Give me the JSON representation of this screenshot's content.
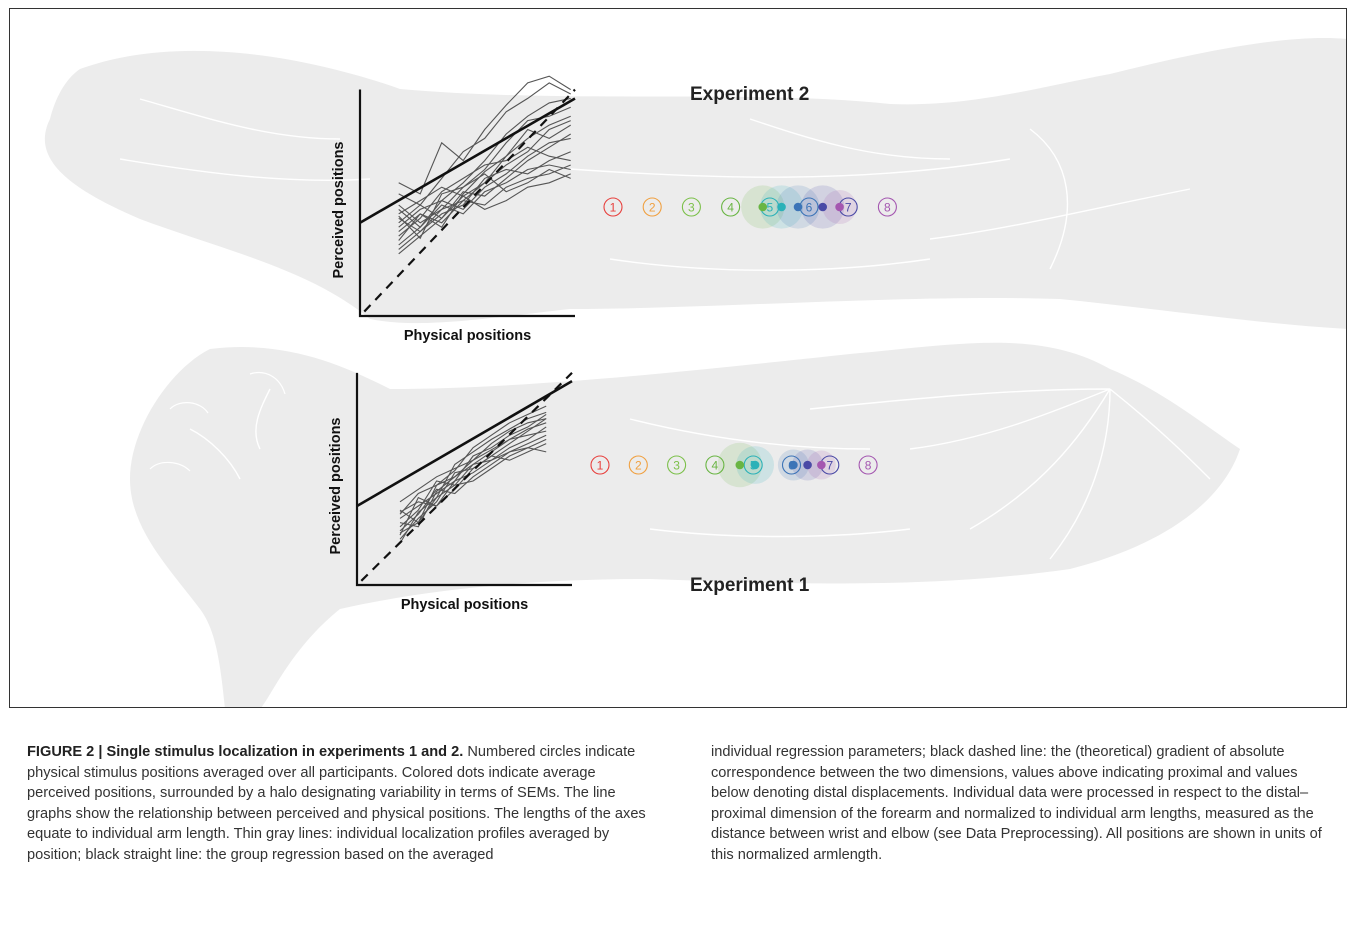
{
  "figure": {
    "experiments": [
      {
        "label": "Experiment 2",
        "chart_data": {
          "type": "line",
          "xlabel": "Physical positions",
          "ylabel": "Perceived positions",
          "stimulus_numbers": [
            "1",
            "2",
            "3",
            "4",
            "5",
            "6",
            "7",
            "8"
          ],
          "group_regression": {
            "intercept": 0.42,
            "slope": 0.56
          },
          "identity_line": {
            "intercept": 0.0,
            "slope": 1.0
          },
          "individual_profiles": [
            [
              0.6,
              0.55,
              0.78,
              0.7,
              0.84,
              0.95,
              1.05,
              1.08,
              1.02
            ],
            [
              0.55,
              0.5,
              0.62,
              0.74,
              0.8,
              0.92,
              0.98,
              1.05,
              1.0
            ],
            [
              0.4,
              0.48,
              0.52,
              0.6,
              0.7,
              0.82,
              0.9,
              0.96,
              0.98
            ],
            [
              0.45,
              0.35,
              0.55,
              0.58,
              0.66,
              0.78,
              0.88,
              0.9,
              0.94
            ],
            [
              0.38,
              0.46,
              0.4,
              0.55,
              0.65,
              0.72,
              0.8,
              0.86,
              0.9
            ],
            [
              0.5,
              0.42,
              0.48,
              0.52,
              0.6,
              0.68,
              0.74,
              0.84,
              0.88
            ],
            [
              0.32,
              0.4,
              0.52,
              0.48,
              0.58,
              0.64,
              0.72,
              0.78,
              0.8
            ],
            [
              0.42,
              0.5,
              0.44,
              0.56,
              0.54,
              0.62,
              0.7,
              0.76,
              0.82
            ],
            [
              0.36,
              0.44,
              0.56,
              0.62,
              0.68,
              0.7,
              0.76,
              0.72,
              0.7
            ],
            [
              0.3,
              0.38,
              0.46,
              0.5,
              0.62,
              0.66,
              0.64,
              0.7,
              0.74
            ],
            [
              0.48,
              0.4,
              0.5,
              0.46,
              0.56,
              0.6,
              0.66,
              0.68,
              0.66
            ],
            [
              0.34,
              0.46,
              0.42,
              0.52,
              0.5,
              0.58,
              0.62,
              0.64,
              0.68
            ],
            [
              0.44,
              0.38,
              0.48,
              0.58,
              0.64,
              0.56,
              0.6,
              0.66,
              0.62
            ],
            [
              0.28,
              0.36,
              0.44,
              0.54,
              0.48,
              0.52,
              0.58,
              0.6,
              0.64
            ],
            [
              0.46,
              0.52,
              0.58,
              0.54,
              0.6,
              0.72,
              0.84,
              0.8,
              0.86
            ]
          ],
          "perceived_means": [
            {
              "number": "4",
              "x": 0.82,
              "sem": 0.95
            },
            {
              "number": "5",
              "x": 1.3,
              "sem": 0.95
            },
            {
              "number": "6",
              "x": 1.72,
              "sem": 0.95
            },
            {
              "number": "7",
              "x": 2.35,
              "sem": 0.95
            },
            {
              "number": "8",
              "x": 2.78,
              "sem": 0.75
            }
          ]
        }
      },
      {
        "label": "Experiment 1",
        "chart_data": {
          "type": "line",
          "xlabel": "Physical positions",
          "ylabel": "Perceived positions",
          "stimulus_numbers": [
            "1",
            "2",
            "3",
            "4",
            "5",
            "6",
            "7",
            "8"
          ],
          "group_regression": {
            "intercept": 0.38,
            "slope": 0.6
          },
          "identity_line": {
            "intercept": 0.0,
            "slope": 1.0
          },
          "individual_profiles": [
            [
              0.25,
              0.3,
              0.48,
              0.55,
              0.66,
              0.72,
              0.78,
              0.82,
              0.86
            ],
            [
              0.2,
              0.35,
              0.42,
              0.58,
              0.64,
              0.7,
              0.75,
              0.8,
              0.83
            ],
            [
              0.3,
              0.28,
              0.45,
              0.52,
              0.6,
              0.68,
              0.74,
              0.78,
              0.8
            ],
            [
              0.35,
              0.4,
              0.38,
              0.5,
              0.62,
              0.66,
              0.72,
              0.76,
              0.82
            ],
            [
              0.28,
              0.36,
              0.5,
              0.48,
              0.58,
              0.64,
              0.7,
              0.75,
              0.78
            ],
            [
              0.22,
              0.32,
              0.4,
              0.54,
              0.56,
              0.62,
              0.68,
              0.74,
              0.8
            ],
            [
              0.4,
              0.46,
              0.52,
              0.56,
              0.6,
              0.65,
              0.7,
              0.72,
              0.74
            ],
            [
              0.32,
              0.38,
              0.44,
              0.5,
              0.54,
              0.6,
              0.66,
              0.7,
              0.76
            ],
            [
              0.26,
              0.34,
              0.46,
              0.44,
              0.52,
              0.58,
              0.64,
              0.68,
              0.72
            ],
            [
              0.36,
              0.3,
              0.42,
              0.48,
              0.5,
              0.56,
              0.62,
              0.66,
              0.7
            ],
            [
              0.24,
              0.42,
              0.38,
              0.46,
              0.56,
              0.62,
              0.6,
              0.64,
              0.68
            ],
            [
              0.34,
              0.44,
              0.48,
              0.52,
              0.58,
              0.6,
              0.64,
              0.66,
              0.64
            ]
          ],
          "perceived_means": [
            {
              "number": "4",
              "x": 0.65,
              "sem": 1.0
            },
            {
              "number": "5",
              "x": 1.05,
              "sem": 0.85
            },
            {
              "number": "6",
              "x": 2.05,
              "sem": 0.7
            },
            {
              "number": "7",
              "x": 2.42,
              "sem": 0.7
            },
            {
              "number": "8",
              "x": 2.78,
              "sem": 0.65
            }
          ]
        }
      }
    ],
    "colors": {
      "m1": "#e8403d",
      "m2": "#f0a040",
      "m3": "#7cc04a",
      "m4": "#69b543",
      "m5": "#2bb1b8",
      "m6": "#3c74b7",
      "m7": "#4a4aa6",
      "m8": "#a457b0",
      "arm": "#ececec",
      "arm_line": "#ffffff"
    }
  },
  "caption": {
    "lead": "FIGURE 2 | Single stimulus localization in experiments 1 and 2.",
    "left": " Numbered circles indicate physical stimulus positions averaged over all participants. Colored dots indicate average perceived positions, surrounded by a halo designating variability in terms of SEMs. The line graphs show the relationship between perceived and physical positions. The lengths of the axes equate to individual arm length. Thin gray lines: individual localization profiles averaged by position; black straight line: the group regression based on the averaged",
    "right": "individual regression parameters; black dashed line: the (theoretical) gradient of absolute correspondence between the two dimensions, values above indicating proximal and values below denoting distal displacements. Individual data were processed in respect to the distal–proximal dimension of the forearm and normalized to individual arm lengths, measured as the distance between wrist and elbow (see Data Preprocessing). All positions are shown in units of this normalized armlength."
  }
}
